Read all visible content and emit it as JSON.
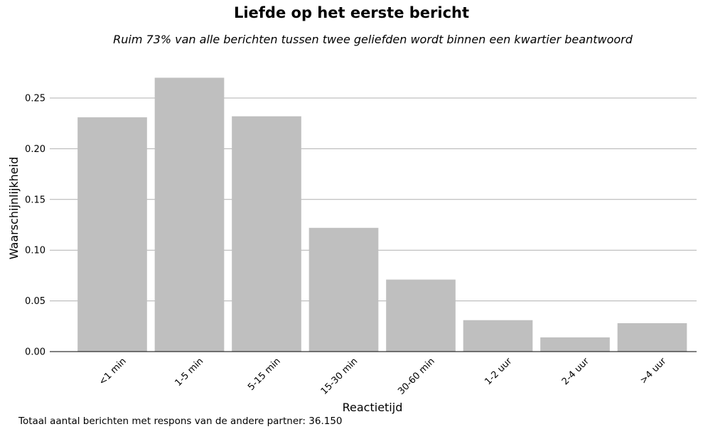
{
  "chart_data": {
    "type": "bar",
    "title": "Liefde op het eerste bericht",
    "subtitle": "Ruim 73% van alle berichten tussen twee geliefden wordt binnen een kwartier beantwoord",
    "xlabel": "Reactietijd",
    "ylabel": "Waarschijnlijkheid",
    "categories": [
      "<1 min",
      "1-5 min",
      "5-15 min",
      "15-30 min",
      "30-60 min",
      "1-2 uur",
      "2-4 uur",
      ">4 uur"
    ],
    "values": [
      0.231,
      0.27,
      0.232,
      0.122,
      0.071,
      0.031,
      0.014,
      0.028
    ],
    "ylim": [
      0,
      0.28
    ],
    "yticks": [
      "0.00",
      "0.05",
      "0.10",
      "0.15",
      "0.20",
      "0.25"
    ],
    "grid": true,
    "bar_color": "#bfbfbf",
    "grid_color": "#b0b0b0"
  },
  "footnote": "Totaal aantal berichten met respons van de andere partner: 36.150"
}
